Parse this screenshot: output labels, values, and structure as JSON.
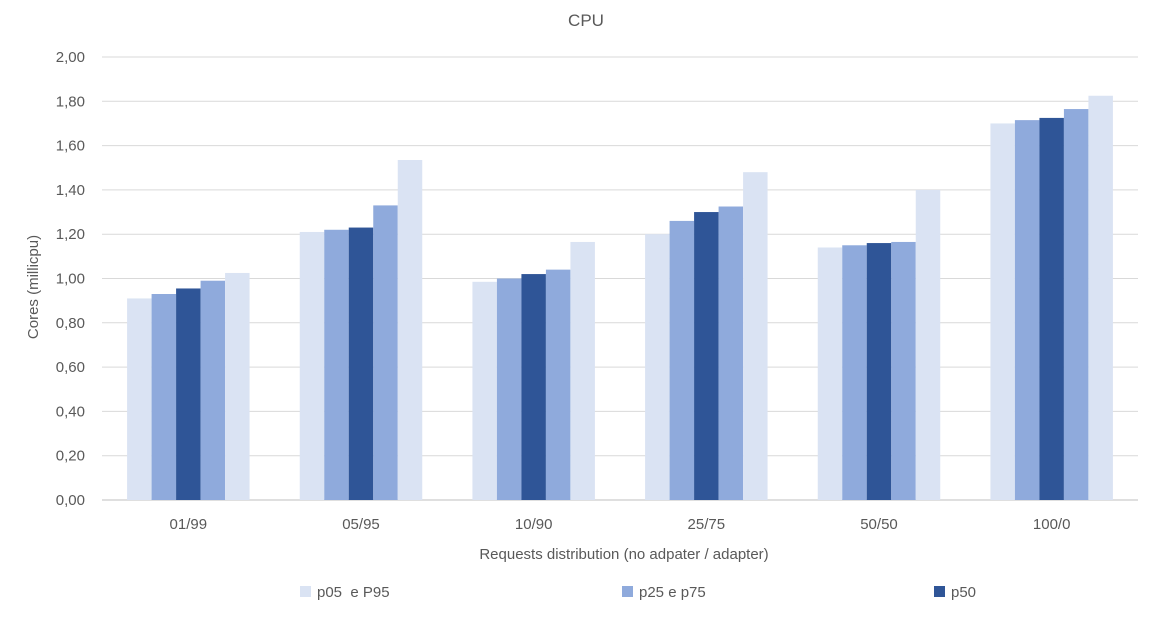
{
  "chart_data": {
    "type": "bar",
    "title": "CPU",
    "xlabel": "Requests distribution (no adpater / adapter)",
    "ylabel": "Cores (millicpu)",
    "ylim": [
      0,
      2
    ],
    "ytick_step": 0.2,
    "ytick_labels": [
      "0,00",
      "0,20",
      "0,40",
      "0,60",
      "0,80",
      "1,00",
      "1,20",
      "1,40",
      "1,60",
      "1,80",
      "2,00"
    ],
    "grid": true,
    "legend_position": "bottom",
    "categories": [
      "01/99",
      "05/95",
      "10/90",
      "25/75",
      "50/50",
      "100/0"
    ],
    "legend": [
      {
        "label": "p05  e P95",
        "color": "#dae3f3"
      },
      {
        "label": "p25 e p75",
        "color": "#8faadc"
      },
      {
        "label": "p50",
        "color": "#2f5597"
      }
    ],
    "bar_groups": [
      {
        "colors": [
          "#dae3f3",
          "#8faadc",
          "#2f5597",
          "#8faadc",
          "#dae3f3"
        ]
      }
    ],
    "series": [
      {
        "values": [
          0.91,
          1.21,
          0.985,
          1.2,
          1.14,
          1.7
        ],
        "color": "#dae3f3"
      },
      {
        "values": [
          0.93,
          1.22,
          1.0,
          1.26,
          1.15,
          1.715
        ],
        "color": "#8faadc"
      },
      {
        "values": [
          0.955,
          1.23,
          1.02,
          1.3,
          1.16,
          1.725
        ],
        "color": "#2f5597"
      },
      {
        "values": [
          0.99,
          1.33,
          1.04,
          1.325,
          1.165,
          1.765
        ],
        "color": "#8faadc"
      },
      {
        "values": [
          1.025,
          1.535,
          1.165,
          1.48,
          1.4,
          1.825
        ],
        "color": "#dae3f3"
      }
    ]
  }
}
